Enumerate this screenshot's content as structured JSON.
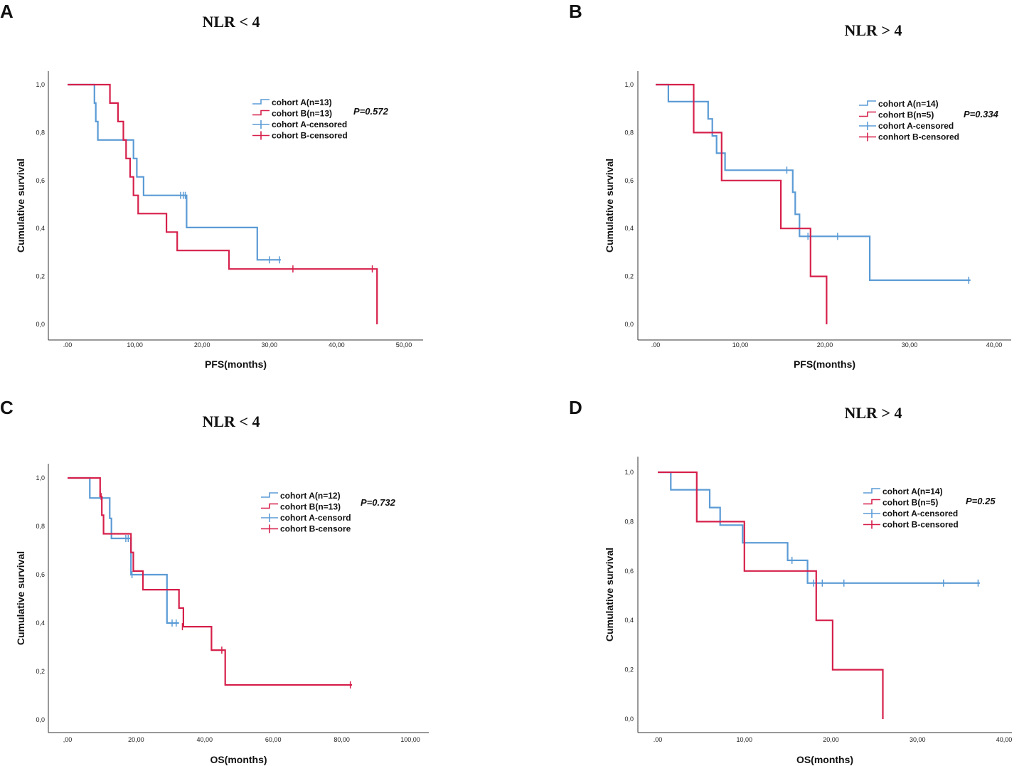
{
  "colors": {
    "cohortA": "#5b9bd5",
    "cohortB": "#d6204b"
  },
  "chart_data": [
    {
      "letter": "A",
      "title": "NLR < 4",
      "type": "line",
      "xlabel": "PFS(months)",
      "ylabel": "Cumulative survival",
      "xlim": [
        0,
        50
      ],
      "ylim": [
        0,
        1
      ],
      "xticks": [
        ".00",
        "10,00",
        "20,00",
        "30,00",
        "40,00",
        "50,00"
      ],
      "yticks": [
        "0,0",
        "0,2",
        "0,4",
        "0,6",
        "0,8",
        "1,0"
      ],
      "legend": [
        "cohort A(n=13)",
        "cohort B(n=13)",
        "cohort A-censored",
        "cohort B-censored"
      ],
      "p_value": "P=0.572",
      "series": [
        {
          "name": "cohort A",
          "x": [
            0,
            4.0,
            4.0,
            4.2,
            4.2,
            4.5,
            4.5,
            9.8,
            9.8,
            10.3,
            10.3,
            11.3,
            11.3,
            17.7,
            17.7,
            28.2,
            28.2,
            31.7
          ],
          "y": [
            1.0,
            1.0,
            0.923,
            0.923,
            0.846,
            0.846,
            0.769,
            0.769,
            0.692,
            0.692,
            0.615,
            0.615,
            0.538,
            0.538,
            0.404,
            0.404,
            0.269,
            0.269
          ],
          "censored": [
            [
              16.8,
              0.538
            ],
            [
              17.2,
              0.538
            ],
            [
              17.5,
              0.538
            ],
            [
              30.0,
              0.269
            ],
            [
              31.5,
              0.269
            ]
          ]
        },
        {
          "name": "cohort B",
          "x": [
            0,
            6.3,
            6.3,
            7.5,
            7.5,
            8.3,
            8.3,
            8.7,
            8.7,
            9.3,
            9.3,
            9.8,
            9.8,
            10.5,
            10.5,
            14.7,
            14.7,
            16.3,
            16.3,
            24.0,
            24.0,
            46.0,
            46.0
          ],
          "y": [
            1.0,
            1.0,
            0.923,
            0.923,
            0.846,
            0.846,
            0.769,
            0.769,
            0.692,
            0.692,
            0.615,
            0.615,
            0.538,
            0.538,
            0.462,
            0.462,
            0.385,
            0.385,
            0.308,
            0.308,
            0.231,
            0.231,
            0.0
          ],
          "censored": [
            [
              33.5,
              0.231
            ],
            [
              45.3,
              0.231
            ]
          ]
        }
      ]
    },
    {
      "letter": "B",
      "title": "NLR > 4",
      "type": "line",
      "xlabel": "PFS(months)",
      "ylabel": "Cumulative survival",
      "xlim": [
        0,
        40
      ],
      "ylim": [
        0,
        1
      ],
      "xticks": [
        ".00",
        "10,00",
        "20,00",
        "30,00",
        "40,00"
      ],
      "yticks": [
        "0,0",
        "0,2",
        "0,4",
        "0,6",
        "0,8",
        "1,0"
      ],
      "legend": [
        "cohort A(n=14)",
        "cohort B(n=5)",
        "cohort A-censored",
        "conhort B-censored"
      ],
      "p_value": "P=0.334",
      "series": [
        {
          "name": "cohort A",
          "x": [
            0,
            1.5,
            1.5,
            6.2,
            6.2,
            6.7,
            6.7,
            7.2,
            7.2,
            8.2,
            8.2,
            16.2,
            16.2,
            16.5,
            16.5,
            17.0,
            17.0,
            25.3,
            25.3,
            37.2
          ],
          "y": [
            1.0,
            1.0,
            0.929,
            0.929,
            0.857,
            0.857,
            0.786,
            0.786,
            0.714,
            0.714,
            0.643,
            0.643,
            0.551,
            0.551,
            0.459,
            0.459,
            0.367,
            0.367,
            0.184,
            0.184
          ],
          "censored": [
            [
              15.5,
              0.643
            ],
            [
              18.0,
              0.367
            ],
            [
              21.5,
              0.367
            ],
            [
              37.0,
              0.184
            ]
          ]
        },
        {
          "name": "cohort B",
          "x": [
            0,
            4.5,
            4.5,
            7.8,
            7.8,
            14.8,
            14.8,
            18.3,
            18.3,
            20.2,
            20.2
          ],
          "y": [
            1.0,
            1.0,
            0.8,
            0.8,
            0.6,
            0.6,
            0.4,
            0.4,
            0.2,
            0.2,
            0.0
          ],
          "censored": []
        }
      ]
    },
    {
      "letter": "C",
      "title": "NLR < 4",
      "type": "line",
      "xlabel": "OS(months)",
      "ylabel": "Cumulative survival",
      "xlim": [
        0,
        100
      ],
      "ylim": [
        0,
        1
      ],
      "xticks": [
        ",00",
        "20,00",
        "40,00",
        "60,00",
        "80,00",
        "100,00"
      ],
      "yticks": [
        "0,0",
        "0,2",
        "0,4",
        "0,6",
        "0,8",
        "1,0"
      ],
      "legend": [
        "cohort A(n=12)",
        "cohort B(n=13)",
        "cohort A-censord",
        "cohort B-censore"
      ],
      "p_value": "P=0.732",
      "series": [
        {
          "name": "cohort A",
          "x": [
            0,
            6.5,
            6.5,
            12.3,
            12.3,
            12.8,
            12.8,
            18.5,
            18.5,
            29.0,
            29.0,
            32.5
          ],
          "y": [
            1.0,
            1.0,
            0.917,
            0.917,
            0.833,
            0.833,
            0.75,
            0.75,
            0.6,
            0.6,
            0.4,
            0.4
          ],
          "censored": [
            [
              17.0,
              0.75
            ],
            [
              17.7,
              0.75
            ],
            [
              18.8,
              0.6
            ],
            [
              30.5,
              0.4
            ],
            [
              31.7,
              0.4
            ]
          ]
        },
        {
          "name": "cohort B",
          "x": [
            0,
            9.5,
            9.5,
            10.0,
            10.0,
            10.5,
            10.5,
            18.5,
            18.5,
            19.2,
            19.2,
            22.0,
            22.0,
            32.5,
            32.5,
            33.8,
            33.8,
            42.0,
            42.0,
            46.0,
            46.0,
            83.0
          ],
          "y": [
            1.0,
            1.0,
            0.923,
            0.923,
            0.846,
            0.846,
            0.769,
            0.769,
            0.692,
            0.692,
            0.615,
            0.615,
            0.538,
            0.538,
            0.462,
            0.462,
            0.385,
            0.385,
            0.288,
            0.288,
            0.144,
            0.144
          ],
          "censored": [
            [
              9.8,
              0.923
            ],
            [
              33.5,
              0.385
            ],
            [
              45.0,
              0.288
            ],
            [
              82.5,
              0.144
            ]
          ]
        }
      ]
    },
    {
      "letter": "D",
      "title": "NLR > 4",
      "type": "line",
      "xlabel": "OS(months)",
      "ylabel": "Cumulative survival",
      "xlim": [
        0,
        40
      ],
      "ylim": [
        0,
        1
      ],
      "xticks": [
        ".00",
        "10,00",
        "20,00",
        "30,00",
        "40,00"
      ],
      "yticks": [
        "0,0",
        "0,2",
        "0,4",
        "0,6",
        "0,8",
        "1,0"
      ],
      "legend": [
        "cohort A(n=14)",
        "cohort B(n=5)",
        "cohort A-censored",
        "cohort B-censored"
      ],
      "p_value": "P=0.25",
      "series": [
        {
          "name": "cohort A",
          "x": [
            0,
            1.5,
            1.5,
            6.0,
            6.0,
            7.2,
            7.2,
            9.8,
            9.8,
            15.0,
            15.0,
            17.3,
            17.3,
            37.2
          ],
          "y": [
            1.0,
            1.0,
            0.929,
            0.929,
            0.857,
            0.857,
            0.786,
            0.786,
            0.714,
            0.714,
            0.643,
            0.643,
            0.551,
            0.551
          ],
          "censored": [
            [
              15.5,
              0.643
            ],
            [
              18.0,
              0.551
            ],
            [
              19.0,
              0.551
            ],
            [
              21.5,
              0.551
            ],
            [
              33.0,
              0.551
            ],
            [
              37.0,
              0.551
            ]
          ]
        },
        {
          "name": "cohort B",
          "x": [
            0,
            4.5,
            4.5,
            10.0,
            10.0,
            18.3,
            18.3,
            20.2,
            20.2,
            26.0,
            26.0
          ],
          "y": [
            1.0,
            1.0,
            0.8,
            0.8,
            0.6,
            0.6,
            0.4,
            0.4,
            0.2,
            0.2,
            0.0
          ],
          "censored": []
        }
      ]
    }
  ]
}
